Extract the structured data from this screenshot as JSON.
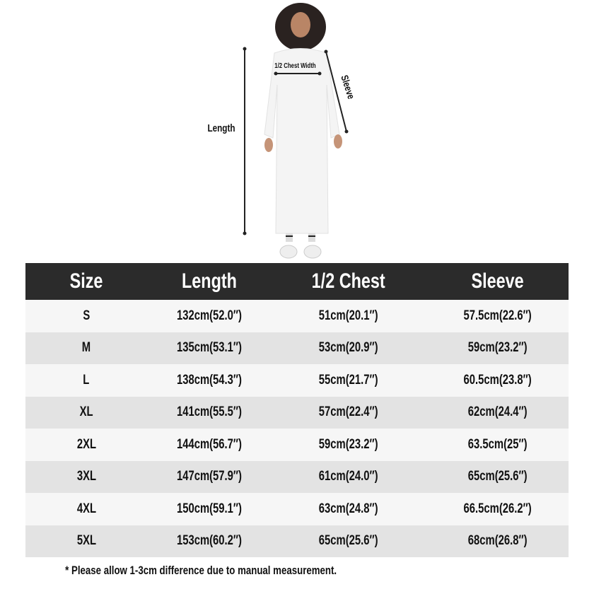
{
  "diagram": {
    "length_label": "Length",
    "chest_label": "1/2 Chest Width",
    "sleeve_label": "Sleeve"
  },
  "table": {
    "headers": [
      "Size",
      "Length",
      "1/2 Chest",
      "Sleeve"
    ],
    "rows": [
      [
        "S",
        "132cm(52.0″)",
        "51cm(20.1″)",
        "57.5cm(22.6″)"
      ],
      [
        "M",
        "135cm(53.1″)",
        "53cm(20.9″)",
        "59cm(23.2″)"
      ],
      [
        "L",
        "138cm(54.3″)",
        "55cm(21.7″)",
        "60.5cm(23.8″)"
      ],
      [
        "XL",
        "141cm(55.5″)",
        "57cm(22.4″)",
        "62cm(24.4″)"
      ],
      [
        "2XL",
        "144cm(56.7″)",
        "59cm(23.2″)",
        "63.5cm(25″)"
      ],
      [
        "3XL",
        "147cm(57.9″)",
        "61cm(24.0″)",
        "65cm(25.6″)"
      ],
      [
        "4XL",
        "150cm(59.1″)",
        "63cm(24.8″)",
        "66.5cm(26.2″)"
      ],
      [
        "5XL",
        "153cm(60.2″)",
        "65cm(25.6″)",
        "68cm(26.8″)"
      ]
    ]
  },
  "footnote": "* Please allow 1-3cm difference due to manual measurement.",
  "colors": {
    "header_bg": "#2b2b2b",
    "row_light": "#f6f6f6",
    "row_dark": "#e3e3e3"
  }
}
